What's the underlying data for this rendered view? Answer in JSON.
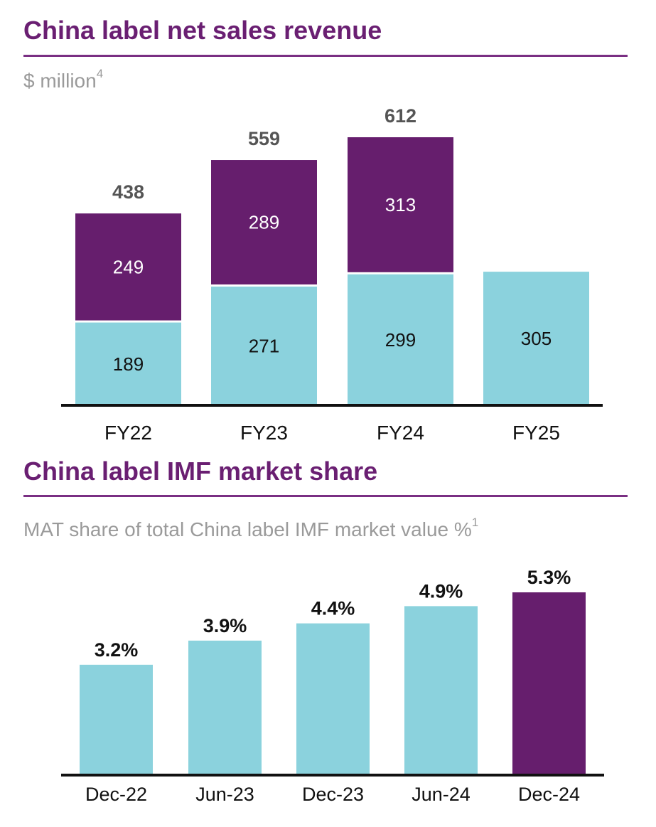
{
  "colors": {
    "purple": "#661e6d",
    "teal": "#8bd2dd",
    "title": "#6a1f72",
    "subtitle_gray": "#9a9a9a"
  },
  "chart_data": [
    {
      "type": "bar",
      "stacked": true,
      "title": "China label net sales revenue",
      "subtitle": "$ million",
      "subtitle_footnote": "4",
      "categories": [
        "FY22",
        "FY23",
        "FY24",
        "FY25"
      ],
      "series": [
        {
          "name": "lower",
          "color": "#8bd2dd",
          "values": [
            189,
            271,
            299,
            305
          ]
        },
        {
          "name": "upper",
          "color": "#661e6d",
          "values": [
            249,
            289,
            313,
            null
          ]
        }
      ],
      "totals": [
        438,
        559,
        612,
        null
      ],
      "ylim": [
        0,
        612
      ],
      "xlabel": "",
      "ylabel": "",
      "grid": false,
      "legend": "none"
    },
    {
      "type": "bar",
      "title": "China label IMF market share",
      "subtitle": "MAT share of total China label IMF market value %",
      "subtitle_footnote": "1",
      "categories": [
        "Dec-22",
        "Jun-23",
        "Dec-23",
        "Jun-24",
        "Dec-24"
      ],
      "values": [
        3.2,
        3.9,
        4.4,
        4.9,
        5.3
      ],
      "value_labels": [
        "3.2%",
        "3.9%",
        "4.4%",
        "4.9%",
        "5.3%"
      ],
      "colors": [
        "#8bd2dd",
        "#8bd2dd",
        "#8bd2dd",
        "#8bd2dd",
        "#661e6d"
      ],
      "ylim": [
        0,
        5.3
      ],
      "xlabel": "",
      "ylabel": "",
      "grid": false,
      "legend": "none"
    }
  ]
}
